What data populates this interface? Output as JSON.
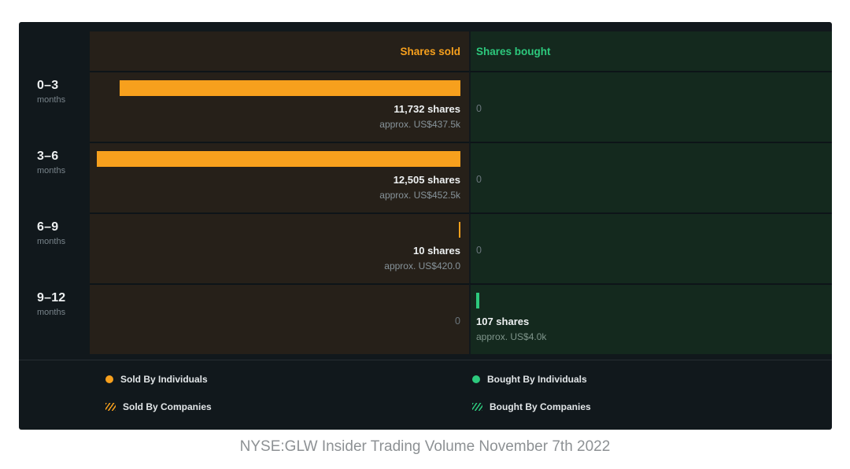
{
  "caption": "NYSE:GLW Insider Trading Volume November 7th 2022",
  "chart_data": {
    "type": "bar",
    "layout": "horizontal-diverging",
    "title": "NYSE:GLW Insider Trading Volume November 7th 2022",
    "max_shares": 12505,
    "headers": {
      "sold": "Shares sold",
      "bought": "Shares bought"
    },
    "categories": [
      "0–3 months",
      "3–6 months",
      "6–9 months",
      "9–12 months"
    ],
    "series": [
      {
        "name": "Shares sold",
        "values": [
          11732,
          12505,
          10,
          0
        ]
      },
      {
        "name": "Shares bought",
        "values": [
          0,
          0,
          0,
          107
        ]
      }
    ],
    "rows": [
      {
        "period": "0–3",
        "unit": "months",
        "sold": {
          "shares": 11732,
          "shares_label": "11,732 shares",
          "approx_label": "approx. US$437.5k"
        },
        "bought": {
          "shares": 0,
          "shares_label": "0",
          "approx_label": ""
        }
      },
      {
        "period": "3–6",
        "unit": "months",
        "sold": {
          "shares": 12505,
          "shares_label": "12,505 shares",
          "approx_label": "approx. US$452.5k"
        },
        "bought": {
          "shares": 0,
          "shares_label": "0",
          "approx_label": ""
        }
      },
      {
        "period": "6–9",
        "unit": "months",
        "sold": {
          "shares": 10,
          "shares_label": "10 shares",
          "approx_label": "approx. US$420.0"
        },
        "bought": {
          "shares": 0,
          "shares_label": "0",
          "approx_label": ""
        }
      },
      {
        "period": "9–12",
        "unit": "months",
        "sold": {
          "shares": 0,
          "shares_label": "0",
          "approx_label": ""
        },
        "bought": {
          "shares": 107,
          "shares_label": "107 shares",
          "approx_label": "approx. US$4.0k"
        }
      }
    ],
    "legend": {
      "sold_individuals": "Sold By Individuals",
      "sold_companies": "Sold By Companies",
      "bought_individuals": "Bought By Individuals",
      "bought_companies": "Bought By Companies"
    },
    "colors": {
      "sold": "#f7a01d",
      "bought": "#2dc97d"
    }
  }
}
